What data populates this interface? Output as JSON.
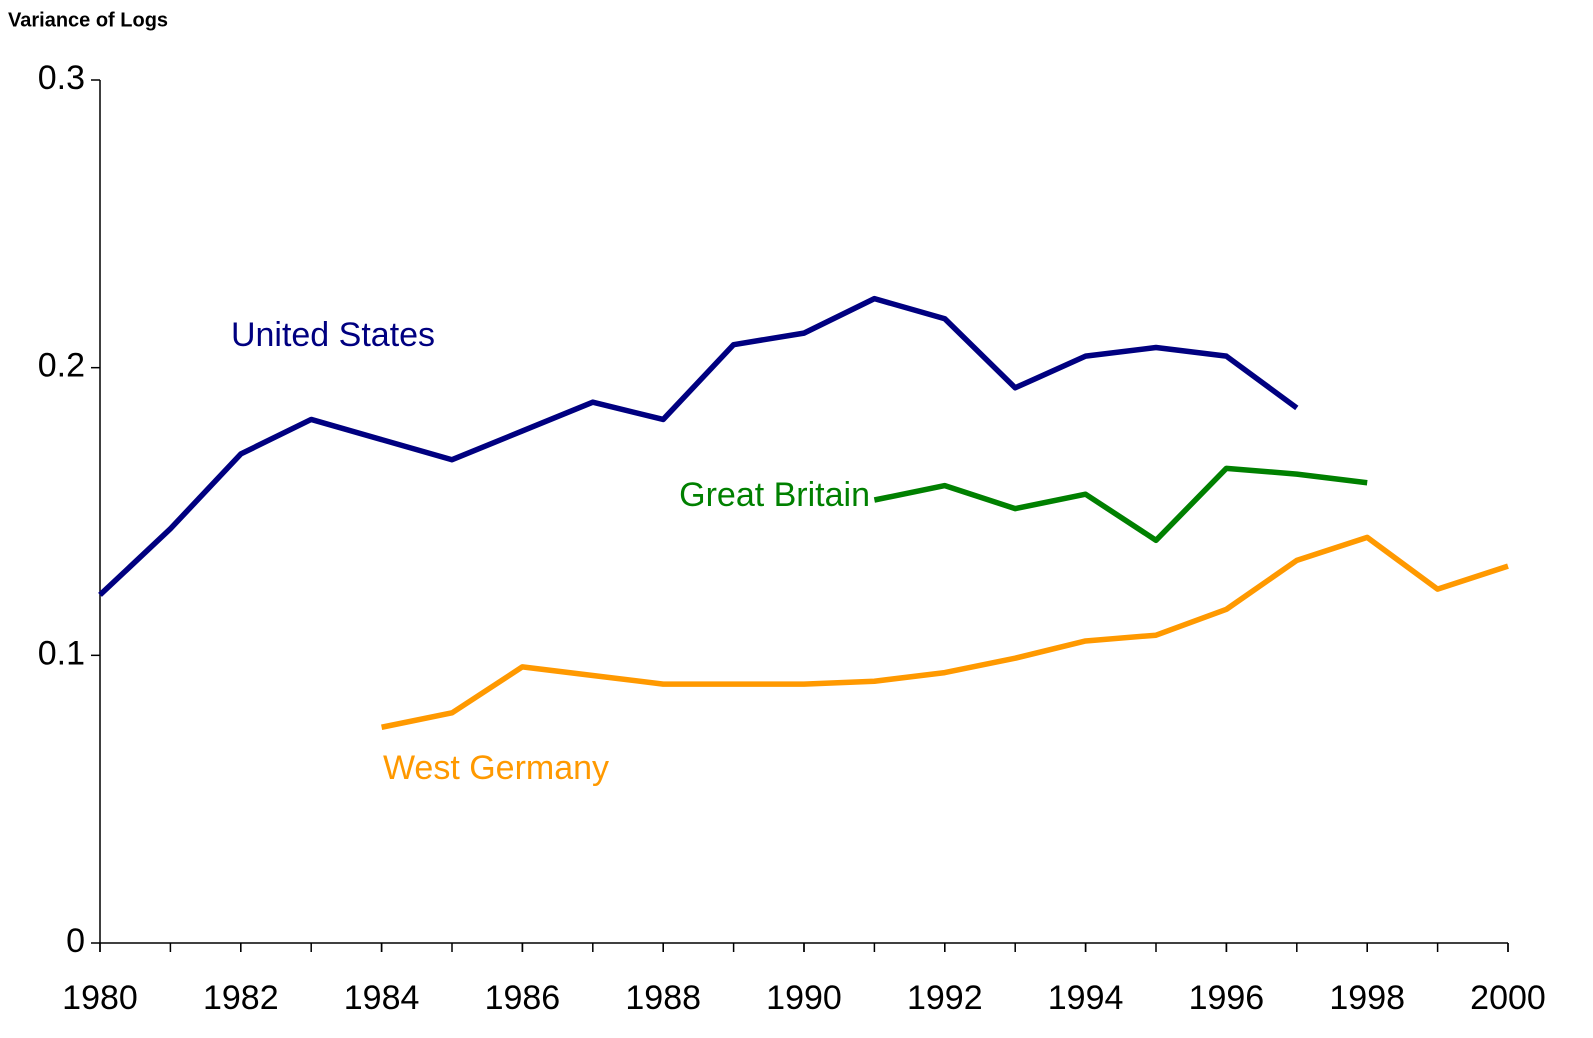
{
  "chart_data": {
    "type": "line",
    "y_label": "Variance of Logs",
    "x": [
      1980,
      1981,
      1982,
      1983,
      1984,
      1985,
      1986,
      1987,
      1988,
      1989,
      1990,
      1991,
      1992,
      1993,
      1994,
      1995,
      1996,
      1997,
      1998,
      1999,
      2000
    ],
    "xlim": [
      1980,
      2000
    ],
    "xticks": [
      1980,
      1982,
      1984,
      1986,
      1988,
      1990,
      1992,
      1994,
      1996,
      1998,
      2000
    ],
    "ylim": [
      0,
      0.3
    ],
    "yticks": [
      0,
      0.1,
      0.2,
      0.3
    ],
    "grid": false,
    "series": [
      {
        "name": "United States",
        "color": "#000080",
        "values": [
          0.121,
          0.144,
          0.17,
          0.182,
          0.175,
          0.168,
          0.178,
          0.188,
          0.182,
          0.208,
          0.212,
          0.224,
          0.217,
          0.193,
          0.204,
          0.207,
          0.204,
          0.186,
          null,
          null,
          null
        ]
      },
      {
        "name": "Great Britain",
        "color": "#008000",
        "values": [
          null,
          null,
          null,
          null,
          null,
          null,
          null,
          null,
          null,
          null,
          null,
          0.154,
          0.159,
          0.151,
          0.156,
          0.14,
          0.165,
          0.163,
          0.16,
          null,
          null
        ]
      },
      {
        "name": "West Germany",
        "color": "#FF9900",
        "values": [
          null,
          null,
          null,
          null,
          0.075,
          0.08,
          0.096,
          0.093,
          0.09,
          0.09,
          0.09,
          0.091,
          0.094,
          0.099,
          0.105,
          0.107,
          0.116,
          0.133,
          0.141,
          0.123,
          0.131
        ]
      }
    ]
  }
}
